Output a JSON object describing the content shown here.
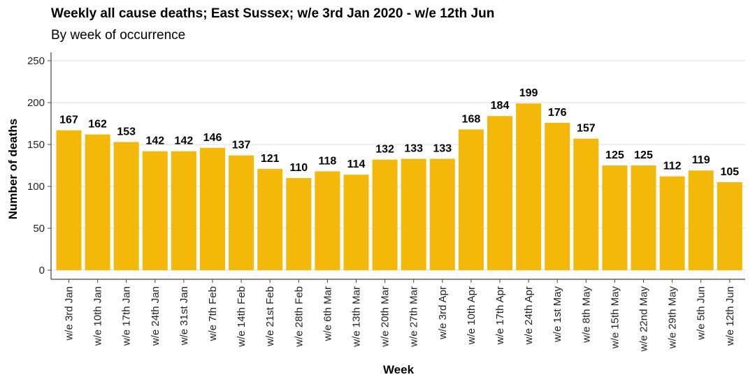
{
  "chart_data": {
    "type": "bar",
    "title": "Weekly all cause deaths; East Sussex; w/e 3rd Jan 2020 - w/e 12th Jun",
    "subtitle": "By week of occurrence",
    "xlabel": "Week",
    "ylabel": "Number of deaths",
    "ylim": [
      0,
      250
    ],
    "yticks": [
      0,
      50,
      100,
      150,
      200,
      250
    ],
    "grid": "horizontal",
    "bar_color": "#F4B80B",
    "categories": [
      "w/e 3rd Jan",
      "w/e 10th Jan",
      "w/e 17th Jan",
      "w/e 24th Jan",
      "w/e 31st Jan",
      "w/e 7th Feb",
      "w/e 14th Feb",
      "w/e 21st Feb",
      "w/e 28th Feb",
      "w/e 6th Mar",
      "w/e 13th Mar",
      "w/e 20th Mar",
      "w/e 27th Mar",
      "w/e 3rd Apr",
      "w/e 10th Apr",
      "w/e 17th Apr",
      "w/e 24th Apr",
      "w/e 1st May",
      "w/e 8th May",
      "w/e 15th May",
      "w/e 22nd May",
      "w/e 29th May",
      "w/e 5th Jun",
      "w/e 12th Jun"
    ],
    "values": [
      167,
      162,
      153,
      142,
      142,
      146,
      137,
      121,
      110,
      118,
      114,
      132,
      133,
      133,
      168,
      184,
      199,
      176,
      157,
      125,
      125,
      112,
      119,
      105
    ]
  }
}
